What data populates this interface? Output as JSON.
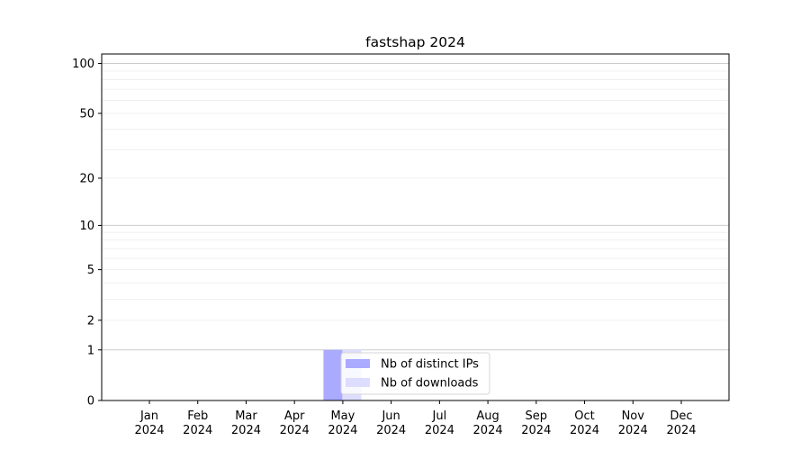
{
  "chart_data": {
    "type": "bar",
    "title": "fastshap 2024",
    "xlabel": "",
    "ylabel": "",
    "y_scale": "log(1+y)",
    "ylim": [
      0,
      114
    ],
    "yticks": [
      0,
      1,
      2,
      5,
      10,
      20,
      50,
      100
    ],
    "grid": true,
    "categories": [
      "Jan\n2024",
      "Feb\n2024",
      "Mar\n2024",
      "Apr\n2024",
      "May\n2024",
      "Jun\n2024",
      "Jul\n2024",
      "Aug\n2024",
      "Sep\n2024",
      "Oct\n2024",
      "Nov\n2024",
      "Dec\n2024"
    ],
    "series": [
      {
        "name": "Nb of distinct IPs",
        "color": "#aaaaff",
        "values": [
          0,
          0,
          0,
          0,
          1,
          0,
          0,
          0,
          0,
          0,
          0,
          0
        ]
      },
      {
        "name": "Nb of downloads",
        "color": "#ddddff",
        "values": [
          0,
          0,
          0,
          0,
          1,
          0,
          0,
          0,
          0,
          0,
          0,
          0
        ]
      }
    ],
    "legend_position": "bottom-center"
  }
}
